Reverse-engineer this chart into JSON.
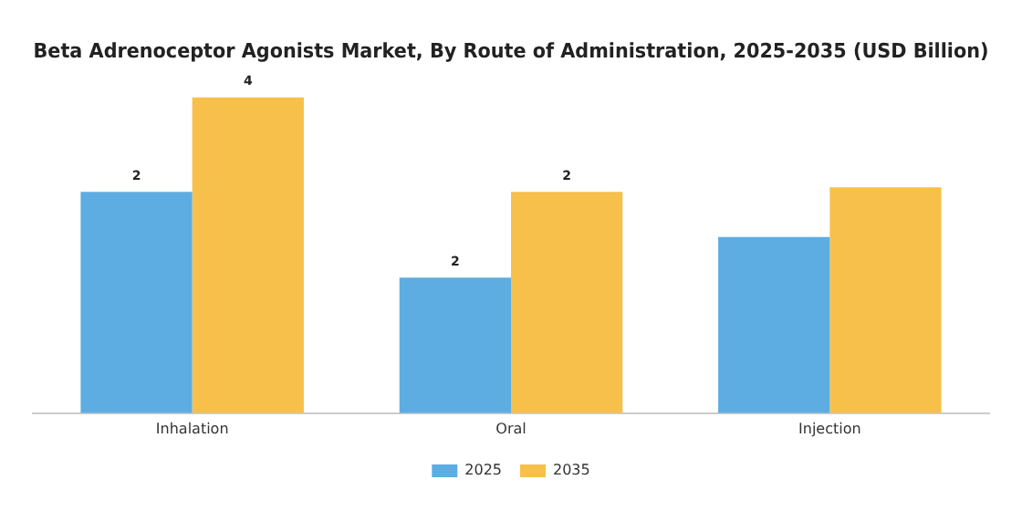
{
  "chart_data": {
    "type": "bar",
    "title": "Beta Adrenoceptor Agonists Market, By Route of Administration, 2025-2035 (USD Billion)",
    "categories": [
      "Inhalation",
      "Oral",
      "Injection"
    ],
    "ylim": [
      0,
      3.5
    ],
    "tick_labels": "x",
    "legend": "bottom",
    "series": [
      {
        "name": "2025",
        "color": "#5dade2",
        "values": [
          2.45,
          1.5,
          1.95
        ],
        "value_labels": [
          "2",
          "2",
          null
        ]
      },
      {
        "name": "2035",
        "color": "#f7c04a",
        "values": [
          3.5,
          2.45,
          2.5
        ],
        "value_labels": [
          "4",
          "2",
          null
        ]
      }
    ]
  }
}
